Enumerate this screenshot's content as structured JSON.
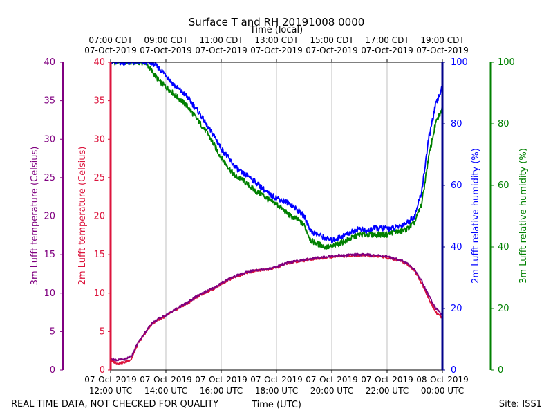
{
  "chart_data": {
    "type": "line",
    "title": "Surface T and RH 20191008 0000",
    "top_axis_label": "Time (local)",
    "xlabel": "Time (UTC)",
    "footer_left": "REAL TIME DATA, NOT CHECKED FOR QUALITY",
    "footer_right": "Site: ISS1",
    "x_range_hours_utc": [
      12,
      24
    ],
    "bottom_ticks": [
      {
        "h": 12,
        "date": "07-Oct-2019",
        "time": "12:00 UTC"
      },
      {
        "h": 14,
        "date": "07-Oct-2019",
        "time": "14:00 UTC"
      },
      {
        "h": 16,
        "date": "07-Oct-2019",
        "time": "16:00 UTC"
      },
      {
        "h": 18,
        "date": "07-Oct-2019",
        "time": "18:00 UTC"
      },
      {
        "h": 20,
        "date": "07-Oct-2019",
        "time": "20:00 UTC"
      },
      {
        "h": 22,
        "date": "07-Oct-2019",
        "time": "22:00 UTC"
      },
      {
        "h": 24,
        "date": "08-Oct-2019",
        "time": "00:00 UTC"
      }
    ],
    "top_ticks": [
      {
        "h": 12,
        "time": "07:00 CDT",
        "date": "07-Oct-2019"
      },
      {
        "h": 14,
        "time": "09:00 CDT",
        "date": "07-Oct-2019"
      },
      {
        "h": 16,
        "time": "11:00 CDT",
        "date": "07-Oct-2019"
      },
      {
        "h": 18,
        "time": "13:00 CDT",
        "date": "07-Oct-2019"
      },
      {
        "h": 20,
        "time": "15:00 CDT",
        "date": "07-Oct-2019"
      },
      {
        "h": 22,
        "time": "17:00 CDT",
        "date": "07-Oct-2019"
      },
      {
        "h": 24,
        "time": "19:00 CDT",
        "date": "07-Oct-2019"
      }
    ],
    "temp_axis": {
      "ylim": [
        0,
        40
      ],
      "ticks": [
        "0",
        "5",
        "10",
        "15",
        "20",
        "25",
        "30",
        "35",
        "40"
      ]
    },
    "rh_axis": {
      "ylim": [
        0,
        100
      ],
      "ticks": [
        "0",
        "20",
        "40",
        "60",
        "80",
        "100"
      ]
    },
    "y_labels": {
      "t3m": "3m Lufft temperature (Celsius)",
      "t2m": "2m Lufft temperature (Celsius)",
      "rh2m": "2m Lufft relative humidity (%)",
      "rh3m": "3m Lufft relative humidity (%)"
    },
    "colors": {
      "t3m": "#800080",
      "t2m": "#dc143c",
      "rh2m": "#0000ff",
      "rh3m": "#008000",
      "rh2m_axis": "#00008b",
      "grid": "#b0b0b0"
    },
    "series": [
      {
        "name": "2m Lufft temperature",
        "key": "t2m",
        "axis": "temp",
        "x": [
          12.0,
          12.25,
          12.5,
          12.75,
          13.0,
          13.25,
          13.5,
          13.75,
          14.0,
          14.25,
          14.5,
          14.75,
          15.0,
          15.25,
          15.5,
          15.75,
          16.0,
          16.25,
          16.5,
          16.75,
          17.0,
          17.25,
          17.5,
          17.75,
          18.0,
          18.25,
          18.5,
          18.75,
          19.0,
          19.25,
          19.5,
          19.75,
          20.0,
          20.25,
          20.5,
          20.75,
          21.0,
          21.25,
          21.5,
          21.75,
          22.0,
          22.25,
          22.5,
          22.75,
          23.0,
          23.25,
          23.5,
          23.75,
          24.0
        ],
        "values": [
          1.2,
          0.9,
          1.0,
          1.4,
          3.5,
          4.8,
          6.0,
          6.6,
          7.0,
          7.6,
          8.1,
          8.6,
          9.2,
          9.8,
          10.2,
          10.6,
          11.2,
          11.7,
          12.1,
          12.4,
          12.7,
          12.9,
          13.0,
          13.1,
          13.3,
          13.7,
          13.9,
          14.1,
          14.2,
          14.4,
          14.5,
          14.6,
          14.7,
          14.8,
          14.8,
          14.9,
          14.9,
          14.9,
          14.8,
          14.8,
          14.6,
          14.4,
          14.2,
          13.7,
          12.9,
          11.3,
          9.3,
          7.6,
          6.7
        ]
      },
      {
        "name": "3m Lufft temperature",
        "key": "t3m",
        "axis": "temp",
        "x": [
          12.0,
          12.25,
          12.5,
          12.75,
          13.0,
          13.25,
          13.5,
          13.75,
          14.0,
          14.25,
          14.5,
          14.75,
          15.0,
          15.25,
          15.5,
          15.75,
          16.0,
          16.25,
          16.5,
          16.75,
          17.0,
          17.25,
          17.5,
          17.75,
          18.0,
          18.25,
          18.5,
          18.75,
          19.0,
          19.25,
          19.5,
          19.75,
          20.0,
          20.25,
          20.5,
          20.75,
          21.0,
          21.25,
          21.5,
          21.75,
          22.0,
          22.25,
          22.5,
          22.75,
          23.0,
          23.25,
          23.5,
          23.75,
          24.0
        ],
        "values": [
          1.5,
          1.3,
          1.4,
          1.8,
          3.6,
          4.9,
          6.1,
          6.7,
          7.1,
          7.7,
          8.2,
          8.7,
          9.3,
          9.9,
          10.3,
          10.7,
          11.3,
          11.8,
          12.2,
          12.5,
          12.8,
          13.0,
          13.1,
          13.2,
          13.4,
          13.8,
          14.0,
          14.2,
          14.3,
          14.5,
          14.6,
          14.7,
          14.8,
          14.9,
          14.9,
          15.0,
          15.0,
          15.0,
          14.9,
          14.9,
          14.7,
          14.5,
          14.3,
          13.8,
          13.0,
          11.6,
          9.7,
          8.1,
          7.1
        ]
      },
      {
        "name": "2m Lufft relative humidity",
        "key": "rh2m",
        "axis": "rh",
        "x": [
          12.0,
          12.25,
          12.5,
          12.75,
          13.0,
          13.25,
          13.5,
          13.75,
          14.0,
          14.25,
          14.5,
          14.75,
          15.0,
          15.25,
          15.5,
          15.75,
          16.0,
          16.25,
          16.5,
          16.75,
          17.0,
          17.25,
          17.5,
          17.75,
          18.0,
          18.25,
          18.5,
          18.75,
          19.0,
          19.25,
          19.5,
          19.75,
          20.0,
          20.25,
          20.5,
          20.75,
          21.0,
          21.25,
          21.5,
          21.75,
          22.0,
          22.25,
          22.5,
          22.75,
          23.0,
          23.25,
          23.5,
          23.75,
          24.0
        ],
        "values": [
          100,
          100,
          100,
          100,
          100,
          100,
          100,
          98,
          96,
          93,
          91,
          89,
          86,
          83,
          79,
          76,
          72,
          69,
          66,
          64,
          63,
          61,
          59,
          57,
          56,
          55,
          54,
          52,
          50,
          45,
          44,
          43,
          42,
          43,
          44,
          45,
          46,
          45,
          46,
          46,
          46,
          46,
          47,
          48,
          50,
          58,
          75,
          86,
          92
        ]
      },
      {
        "name": "3m Lufft relative humidity",
        "key": "rh3m",
        "axis": "rh",
        "x": [
          12.0,
          12.25,
          12.5,
          12.75,
          13.0,
          13.25,
          13.5,
          13.75,
          14.0,
          14.25,
          14.5,
          14.75,
          15.0,
          15.25,
          15.5,
          15.75,
          16.0,
          16.25,
          16.5,
          16.75,
          17.0,
          17.25,
          17.5,
          17.75,
          18.0,
          18.25,
          18.5,
          18.75,
          19.0,
          19.25,
          19.5,
          19.75,
          20.0,
          20.25,
          20.5,
          20.75,
          21.0,
          21.25,
          21.5,
          21.75,
          22.0,
          22.25,
          22.5,
          22.75,
          23.0,
          23.25,
          23.5,
          23.75,
          24.0
        ],
        "values": [
          100,
          100,
          100,
          100,
          100,
          100,
          97,
          94,
          92,
          90,
          88,
          86,
          83,
          80,
          77,
          73,
          69,
          66,
          63,
          62,
          60,
          58,
          57,
          55,
          54,
          52,
          50,
          49,
          47,
          42,
          41,
          40,
          40,
          41,
          42,
          43,
          44,
          44,
          44,
          44,
          44,
          45,
          45,
          46,
          48,
          54,
          69,
          80,
          85
        ]
      }
    ]
  }
}
